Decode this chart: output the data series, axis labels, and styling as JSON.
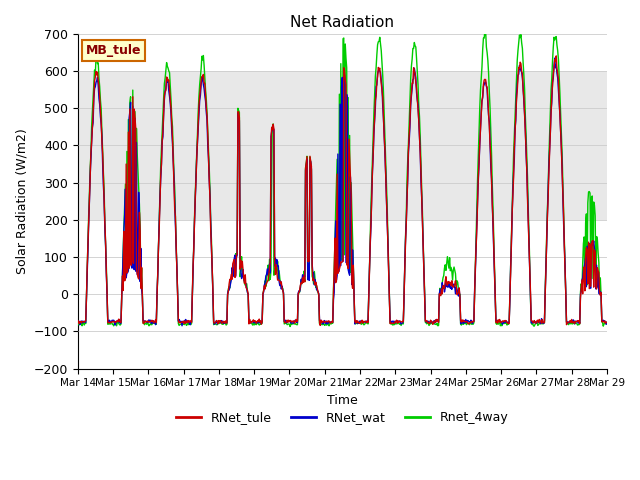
{
  "title": "Net Radiation",
  "ylabel": "Solar Radiation (W/m2)",
  "xlabel": "Time",
  "ylim": [
    -200,
    700
  ],
  "yticks": [
    -200,
    -100,
    0,
    100,
    200,
    300,
    400,
    500,
    600,
    700
  ],
  "xlim_start": 0,
  "xlim_end": 360,
  "xtick_labels": [
    "Mar 14",
    "Mar 15",
    "Mar 16",
    "Mar 17",
    "Mar 18",
    "Mar 19",
    "Mar 20",
    "Mar 21",
    "Mar 22",
    "Mar 23",
    "Mar 24",
    "Mar 25",
    "Mar 26",
    "Mar 27",
    "Mar 28",
    "Mar 29"
  ],
  "xtick_positions": [
    0,
    24,
    48,
    72,
    96,
    120,
    144,
    168,
    192,
    216,
    240,
    264,
    288,
    312,
    336,
    360
  ],
  "colors": {
    "RNet_tule": "#cc0000",
    "RNet_wat": "#0000cc",
    "Rnet_4way": "#00cc00"
  },
  "legend_labels": [
    "RNet_tule",
    "RNet_wat",
    "Rnet_4way"
  ],
  "annotation_box": {
    "text": "MB_tule",
    "facecolor": "#ffffcc",
    "edgecolor": "#cc6600",
    "textcolor": "#880000"
  },
  "band_color": "#e8e8e8",
  "band_ranges": [
    [
      200,
      400
    ],
    [
      400,
      600
    ]
  ],
  "grid_color": "#cccccc",
  "plot_bg": "#ffffff",
  "linewidth": 1.0
}
